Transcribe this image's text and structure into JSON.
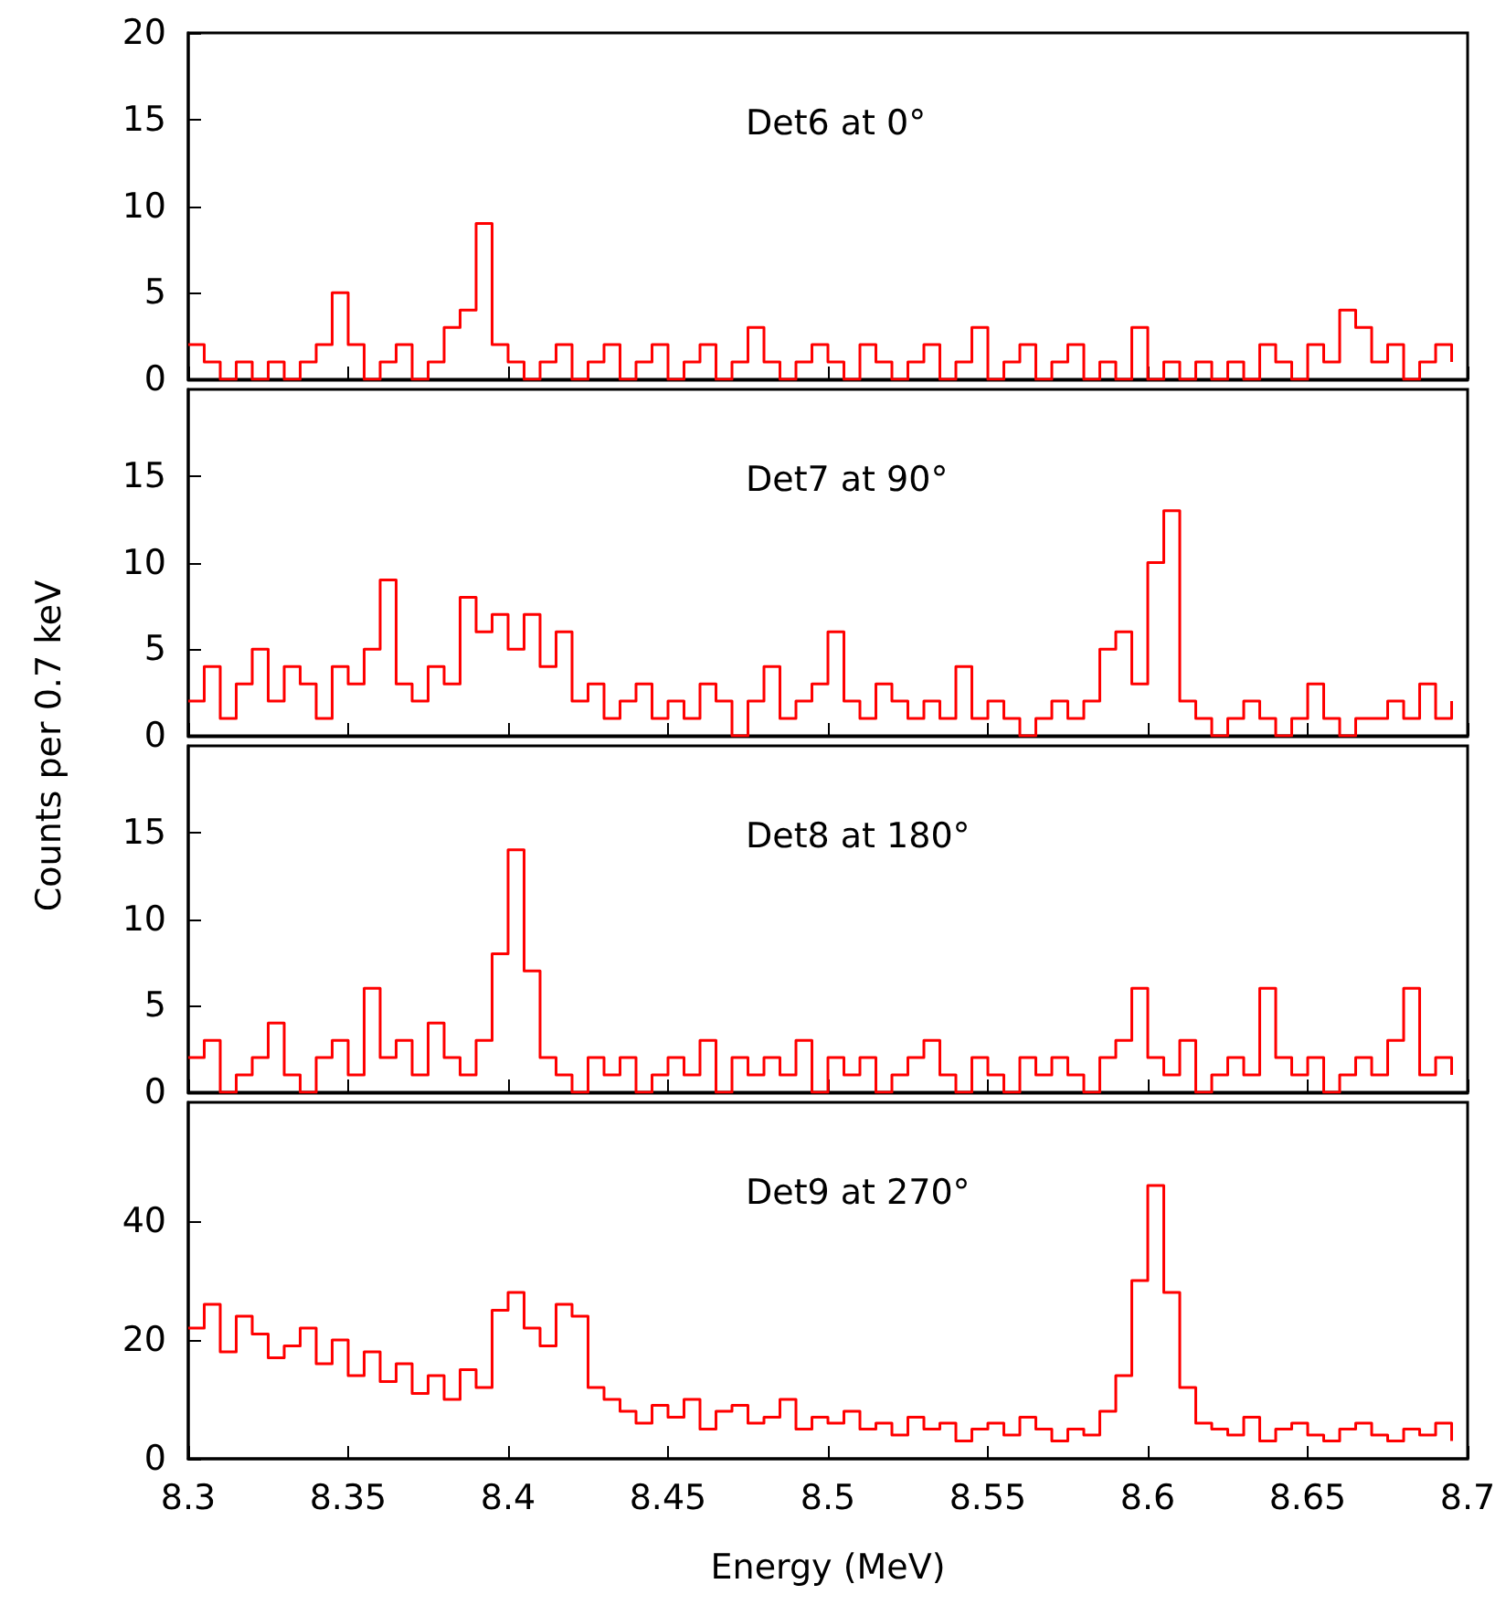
{
  "chart_data": [
    {
      "type": "step",
      "annotations": [
        "Det6 at 0°"
      ],
      "tick_labels": "y",
      "xlim": [
        8.3,
        8.7
      ],
      "xticks": [
        8.3,
        8.35,
        8.4,
        8.45,
        8.5,
        8.55,
        8.6,
        8.65,
        8.7
      ],
      "ylim": [
        0,
        20
      ],
      "yticks": [
        0,
        5,
        10,
        15,
        20
      ],
      "x": [
        8.3,
        8.305,
        8.31,
        8.315,
        8.32,
        8.325,
        8.33,
        8.335,
        8.34,
        8.345,
        8.35,
        8.355,
        8.36,
        8.365,
        8.37,
        8.375,
        8.38,
        8.385,
        8.39,
        8.395,
        8.4,
        8.405,
        8.41,
        8.415,
        8.42,
        8.425,
        8.43,
        8.435,
        8.44,
        8.445,
        8.45,
        8.455,
        8.46,
        8.465,
        8.47,
        8.475,
        8.48,
        8.485,
        8.49,
        8.495,
        8.5,
        8.505,
        8.51,
        8.515,
        8.52,
        8.525,
        8.53,
        8.535,
        8.54,
        8.545,
        8.55,
        8.555,
        8.56,
        8.565,
        8.57,
        8.575,
        8.58,
        8.585,
        8.59,
        8.595,
        8.6,
        8.605,
        8.61,
        8.615,
        8.62,
        8.625,
        8.63,
        8.635,
        8.64,
        8.645,
        8.65,
        8.655,
        8.66,
        8.665,
        8.67,
        8.675,
        8.68,
        8.685,
        8.69,
        8.695
      ],
      "series": [
        {
          "color": "#ff0000",
          "values": [
            2,
            1,
            0,
            1,
            0,
            1,
            0,
            1,
            2,
            5,
            2,
            0,
            1,
            2,
            0,
            1,
            3,
            4,
            9,
            2,
            1,
            0,
            1,
            2,
            0,
            1,
            2,
            0,
            1,
            2,
            0,
            1,
            2,
            0,
            1,
            3,
            1,
            0,
            1,
            2,
            1,
            0,
            2,
            1,
            0,
            1,
            2,
            0,
            1,
            3,
            0,
            1,
            2,
            0,
            1,
            2,
            0,
            1,
            0,
            3,
            0,
            1,
            0,
            1,
            0,
            1,
            0,
            2,
            1,
            0,
            2,
            1,
            4,
            3,
            1,
            2,
            0,
            1,
            2,
            1
          ]
        }
      ]
    },
    {
      "type": "step",
      "annotations": [
        "Det7 at 90°"
      ],
      "ylabel": "Counts per 0.7 keV",
      "tick_labels": "y",
      "xlim": [
        8.3,
        8.7
      ],
      "xticks": [
        8.3,
        8.35,
        8.4,
        8.45,
        8.5,
        8.55,
        8.6,
        8.65,
        8.7
      ],
      "ylim": [
        0,
        20
      ],
      "yticks": [
        0,
        5,
        10,
        15
      ],
      "x": [
        8.3,
        8.305,
        8.31,
        8.315,
        8.32,
        8.325,
        8.33,
        8.335,
        8.34,
        8.345,
        8.35,
        8.355,
        8.36,
        8.365,
        8.37,
        8.375,
        8.38,
        8.385,
        8.39,
        8.395,
        8.4,
        8.405,
        8.41,
        8.415,
        8.42,
        8.425,
        8.43,
        8.435,
        8.44,
        8.445,
        8.45,
        8.455,
        8.46,
        8.465,
        8.47,
        8.475,
        8.48,
        8.485,
        8.49,
        8.495,
        8.5,
        8.505,
        8.51,
        8.515,
        8.52,
        8.525,
        8.53,
        8.535,
        8.54,
        8.545,
        8.55,
        8.555,
        8.56,
        8.565,
        8.57,
        8.575,
        8.58,
        8.585,
        8.59,
        8.595,
        8.6,
        8.605,
        8.61,
        8.615,
        8.62,
        8.625,
        8.63,
        8.635,
        8.64,
        8.645,
        8.65,
        8.655,
        8.66,
        8.665,
        8.67,
        8.675,
        8.68,
        8.685,
        8.69,
        8.695
      ],
      "series": [
        {
          "color": "#ff0000",
          "values": [
            2,
            4,
            1,
            3,
            5,
            2,
            4,
            3,
            1,
            4,
            3,
            5,
            9,
            3,
            2,
            4,
            3,
            8,
            6,
            7,
            5,
            7,
            4,
            6,
            2,
            3,
            1,
            2,
            3,
            1,
            2,
            1,
            3,
            2,
            0,
            2,
            4,
            1,
            2,
            3,
            6,
            2,
            1,
            3,
            2,
            1,
            2,
            1,
            4,
            1,
            2,
            1,
            0,
            1,
            2,
            1,
            2,
            5,
            6,
            3,
            10,
            13,
            2,
            1,
            0,
            1,
            2,
            1,
            0,
            1,
            3,
            1,
            0,
            1,
            1,
            2,
            1,
            3,
            1,
            2
          ]
        }
      ]
    },
    {
      "type": "step",
      "annotations": [
        "Det8 at 180°"
      ],
      "tick_labels": "y",
      "xlim": [
        8.3,
        8.7
      ],
      "xticks": [
        8.3,
        8.35,
        8.4,
        8.45,
        8.5,
        8.55,
        8.6,
        8.65,
        8.7
      ],
      "ylim": [
        0,
        20
      ],
      "yticks": [
        0,
        5,
        10,
        15
      ],
      "x": [
        8.3,
        8.305,
        8.31,
        8.315,
        8.32,
        8.325,
        8.33,
        8.335,
        8.34,
        8.345,
        8.35,
        8.355,
        8.36,
        8.365,
        8.37,
        8.375,
        8.38,
        8.385,
        8.39,
        8.395,
        8.4,
        8.405,
        8.41,
        8.415,
        8.42,
        8.425,
        8.43,
        8.435,
        8.44,
        8.445,
        8.45,
        8.455,
        8.46,
        8.465,
        8.47,
        8.475,
        8.48,
        8.485,
        8.49,
        8.495,
        8.5,
        8.505,
        8.51,
        8.515,
        8.52,
        8.525,
        8.53,
        8.535,
        8.54,
        8.545,
        8.55,
        8.555,
        8.56,
        8.565,
        8.57,
        8.575,
        8.58,
        8.585,
        8.59,
        8.595,
        8.6,
        8.605,
        8.61,
        8.615,
        8.62,
        8.625,
        8.63,
        8.635,
        8.64,
        8.645,
        8.65,
        8.655,
        8.66,
        8.665,
        8.67,
        8.675,
        8.68,
        8.685,
        8.69,
        8.695
      ],
      "series": [
        {
          "color": "#ff0000",
          "values": [
            2,
            3,
            0,
            1,
            2,
            4,
            1,
            0,
            2,
            3,
            1,
            6,
            2,
            3,
            1,
            4,
            2,
            1,
            3,
            8,
            14,
            7,
            2,
            1,
            0,
            2,
            1,
            2,
            0,
            1,
            2,
            1,
            3,
            0,
            2,
            1,
            2,
            1,
            3,
            0,
            2,
            1,
            2,
            0,
            1,
            2,
            3,
            1,
            0,
            2,
            1,
            0,
            2,
            1,
            2,
            1,
            0,
            2,
            3,
            6,
            2,
            1,
            3,
            0,
            1,
            2,
            1,
            6,
            2,
            1,
            2,
            0,
            1,
            2,
            1,
            3,
            6,
            1,
            2,
            1
          ]
        }
      ]
    },
    {
      "type": "step",
      "annotations": [
        "Det9 at 270°"
      ],
      "xlabel": "Energy (MeV)",
      "xlim": [
        8.3,
        8.7
      ],
      "xticks": [
        8.3,
        8.35,
        8.4,
        8.45,
        8.5,
        8.55,
        8.6,
        8.65,
        8.7
      ],
      "ylim": [
        0,
        60
      ],
      "yticks": [
        0,
        20,
        40
      ],
      "x": [
        8.3,
        8.305,
        8.31,
        8.315,
        8.32,
        8.325,
        8.33,
        8.335,
        8.34,
        8.345,
        8.35,
        8.355,
        8.36,
        8.365,
        8.37,
        8.375,
        8.38,
        8.385,
        8.39,
        8.395,
        8.4,
        8.405,
        8.41,
        8.415,
        8.42,
        8.425,
        8.43,
        8.435,
        8.44,
        8.445,
        8.45,
        8.455,
        8.46,
        8.465,
        8.47,
        8.475,
        8.48,
        8.485,
        8.49,
        8.495,
        8.5,
        8.505,
        8.51,
        8.515,
        8.52,
        8.525,
        8.53,
        8.535,
        8.54,
        8.545,
        8.55,
        8.555,
        8.56,
        8.565,
        8.57,
        8.575,
        8.58,
        8.585,
        8.59,
        8.595,
        8.6,
        8.605,
        8.61,
        8.615,
        8.62,
        8.625,
        8.63,
        8.635,
        8.64,
        8.645,
        8.65,
        8.655,
        8.66,
        8.665,
        8.67,
        8.675,
        8.68,
        8.685,
        8.69,
        8.695
      ],
      "series": [
        {
          "color": "#ff0000",
          "values": [
            22,
            26,
            18,
            24,
            21,
            17,
            19,
            22,
            16,
            20,
            14,
            18,
            13,
            16,
            11,
            14,
            10,
            15,
            12,
            25,
            28,
            22,
            19,
            26,
            24,
            12,
            10,
            8,
            6,
            9,
            7,
            10,
            5,
            8,
            9,
            6,
            7,
            10,
            5,
            7,
            6,
            8,
            5,
            6,
            4,
            7,
            5,
            6,
            3,
            5,
            6,
            4,
            7,
            5,
            3,
            5,
            4,
            8,
            14,
            30,
            46,
            28,
            12,
            6,
            5,
            4,
            7,
            3,
            5,
            6,
            4,
            3,
            5,
            6,
            4,
            3,
            5,
            4,
            6,
            3
          ]
        }
      ]
    }
  ]
}
